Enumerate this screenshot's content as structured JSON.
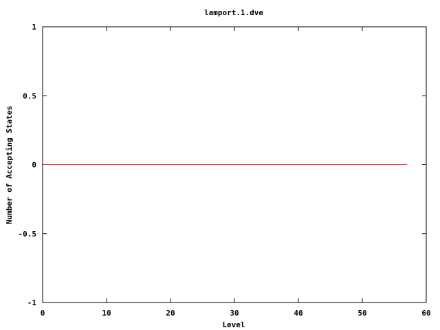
{
  "chart_data": {
    "type": "line",
    "title": "lamport.1.dve",
    "xlabel": "Level",
    "ylabel": "Number of Accepting States",
    "xlim": [
      0,
      60
    ],
    "ylim": [
      -1,
      1
    ],
    "x_ticks": [
      0,
      10,
      20,
      30,
      40,
      50,
      60
    ],
    "y_ticks": [
      -1,
      -0.5,
      0,
      0.5,
      1
    ],
    "x_tick_labels": [
      "0",
      "10",
      "20",
      "30",
      "40",
      "50",
      "60"
    ],
    "y_tick_labels": [
      "-1",
      "-0.5",
      "0",
      "0.5",
      "1"
    ],
    "grid": false,
    "legend": "none",
    "series": [
      {
        "color": "#a52a2a",
        "x": [
          0,
          57
        ],
        "y": [
          0,
          0
        ]
      }
    ]
  }
}
